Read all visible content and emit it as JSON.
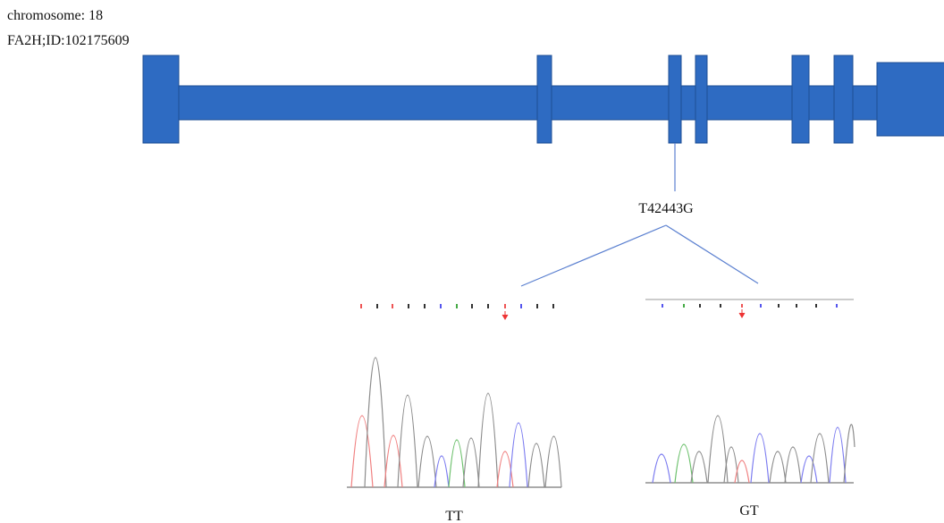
{
  "header": {
    "chromosome": "chromosome: 18",
    "gene": "FA2H;ID:102175609"
  },
  "mutation": {
    "label": "T42443G"
  },
  "genotypes": [
    {
      "label": "TT"
    },
    {
      "label": "GT"
    }
  ]
}
